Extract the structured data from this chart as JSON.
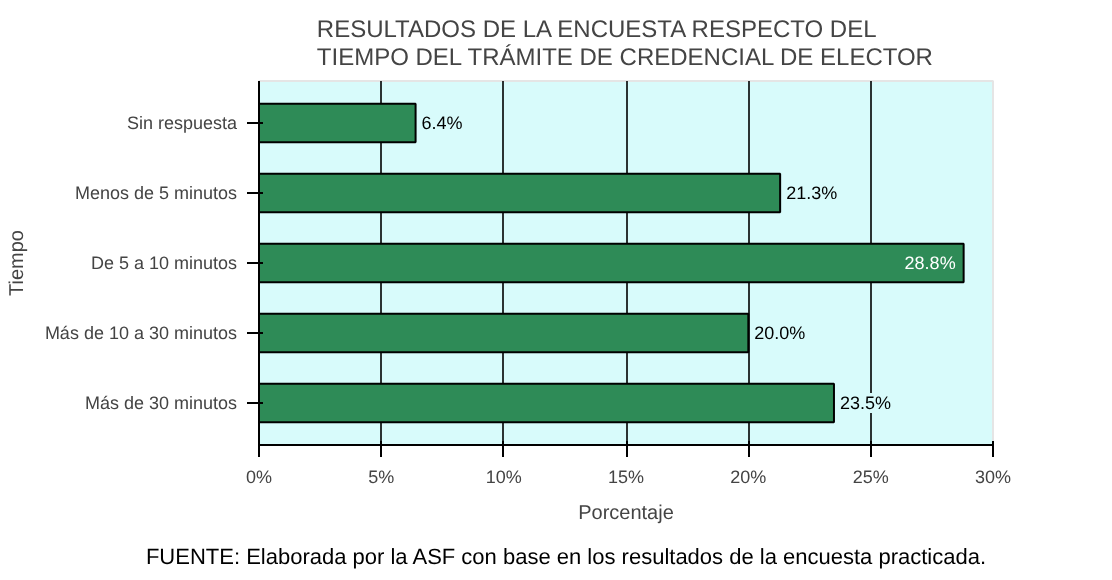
{
  "chart_data": {
    "type": "bar",
    "orientation": "horizontal",
    "title": "RESULTADOS DE LA ENCUESTA RESPECTO DEL\nTIEMPO DEL TRÁMITE DE CREDENCIAL DE ELECTOR",
    "xlabel": "Porcentaje",
    "ylabel": "Tiempo",
    "categories": [
      "Sin respuesta",
      "Menos de 5 minutos",
      "De 5 a 10 minutos",
      "Más de 10 a 30 minutos",
      "Más de 30 minutos"
    ],
    "values": [
      6.4,
      21.3,
      28.8,
      20.0,
      23.5
    ],
    "color": "#2e8b57",
    "value_labels": [
      "6.4%",
      "21.3%",
      "28.8%",
      "20.0%",
      "23.5%"
    ],
    "xlim": [
      0,
      30
    ],
    "xticks": [
      {
        "value": 0,
        "label": "0%"
      },
      {
        "value": 5,
        "label": "5%"
      },
      {
        "value": 10,
        "label": "10%"
      },
      {
        "value": 15,
        "label": "15%"
      },
      {
        "value": 20,
        "label": "20%"
      },
      {
        "value": 25,
        "label": "25%"
      },
      {
        "value": 30,
        "label": "30%"
      }
    ],
    "grid": "x",
    "annotations": [
      "FUENTE: Elaborada por la ASF con base en los resultados de la encuesta practicada."
    ]
  }
}
